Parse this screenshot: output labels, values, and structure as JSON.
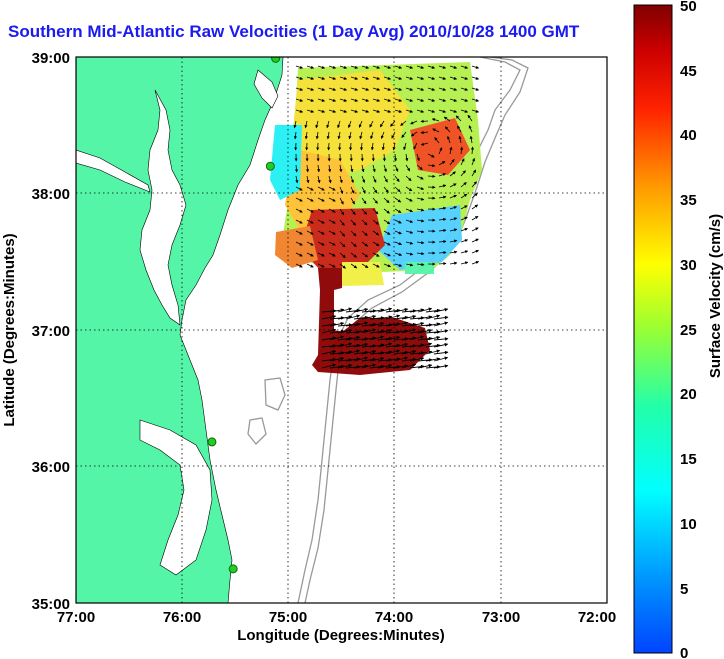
{
  "title": "Southern Mid-Atlantic Raw Velocities (1 Day Avg) 2010/10/28 1400 GMT",
  "x_axis": {
    "label": "Longitude (Degrees:Minutes)",
    "ticks": [
      "77:00",
      "76:00",
      "75:00",
      "74:00",
      "73:00",
      "72:00"
    ],
    "range": [
      -77,
      -72
    ]
  },
  "y_axis": {
    "label": "Latitude (Degrees:Minutes)",
    "ticks": [
      "39:00",
      "38:00",
      "37:00",
      "36:00",
      "35:00"
    ],
    "range": [
      35,
      39
    ]
  },
  "colorbar": {
    "label": "Surface Velocity (cm/s)",
    "ticks": [
      "50",
      "45",
      "40",
      "35",
      "30",
      "25",
      "20",
      "15",
      "10",
      "5",
      "0"
    ],
    "range": [
      0,
      50
    ],
    "colormap": "jet"
  },
  "colors": {
    "land": "#55f5a8",
    "water": "#ffffff",
    "bathymetry": "#999999",
    "station": "#22cc22",
    "title": "#1b1bf0"
  },
  "grid": "dotted",
  "stations": [
    {
      "lon": -75.12,
      "lat": 38.99
    },
    {
      "lon": -75.17,
      "lat": 38.2
    },
    {
      "lon": -75.72,
      "lat": 36.18
    },
    {
      "lon": -75.52,
      "lat": 35.25
    }
  ]
}
